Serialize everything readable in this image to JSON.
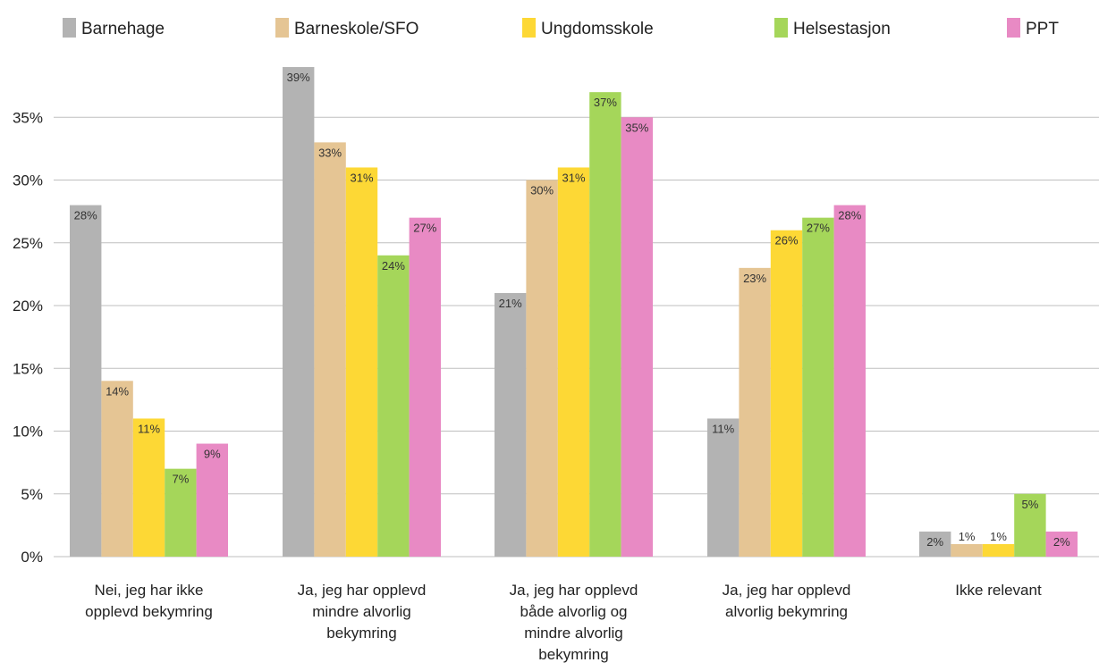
{
  "chart_data": {
    "type": "bar",
    "title": "",
    "xlabel": "",
    "ylabel": "",
    "ylim": [
      0,
      40
    ],
    "yticks": [
      0,
      5,
      10,
      15,
      20,
      25,
      30,
      35
    ],
    "ytick_labels": [
      "0%",
      "5%",
      "10%",
      "15%",
      "20%",
      "25%",
      "30%",
      "35%"
    ],
    "grid": true,
    "legend_position": "top",
    "categories": [
      [
        "Nei, jeg har ikke",
        "opplevd bekymring"
      ],
      [
        "Ja, jeg har opplevd",
        "mindre alvorlig",
        "bekymring"
      ],
      [
        "Ja, jeg har opplevd",
        "både alvorlig og",
        "mindre alvorlig",
        "bekymring"
      ],
      [
        "Ja, jeg har opplevd",
        "alvorlig bekymring"
      ],
      [
        "Ikke relevant"
      ]
    ],
    "series": [
      {
        "name": "Barnehage",
        "color": "#b3b3b3",
        "values": [
          28,
          39,
          21,
          11,
          2
        ],
        "labels": [
          "28%",
          "39%",
          "21%",
          "11%",
          "2%"
        ]
      },
      {
        "name": "Barneskole/SFO",
        "color": "#e5c594",
        "values": [
          14,
          33,
          30,
          23,
          1
        ],
        "labels": [
          "14%",
          "33%",
          "30%",
          "23%",
          "1%"
        ]
      },
      {
        "name": "Ungdomsskole",
        "color": "#fdd835",
        "values": [
          11,
          31,
          31,
          26,
          1
        ],
        "labels": [
          "11%",
          "31%",
          "31%",
          "26%",
          "1%"
        ]
      },
      {
        "name": "Helsestasjon",
        "color": "#a5d65a",
        "values": [
          7,
          24,
          37,
          27,
          5
        ],
        "labels": [
          "7%",
          "24%",
          "37%",
          "27%",
          "5%"
        ]
      },
      {
        "name": "PPT",
        "color": "#e88ac4",
        "values": [
          9,
          27,
          35,
          28,
          2
        ],
        "labels": [
          "9%",
          "27%",
          "35%",
          "28%",
          "2%"
        ]
      }
    ]
  }
}
